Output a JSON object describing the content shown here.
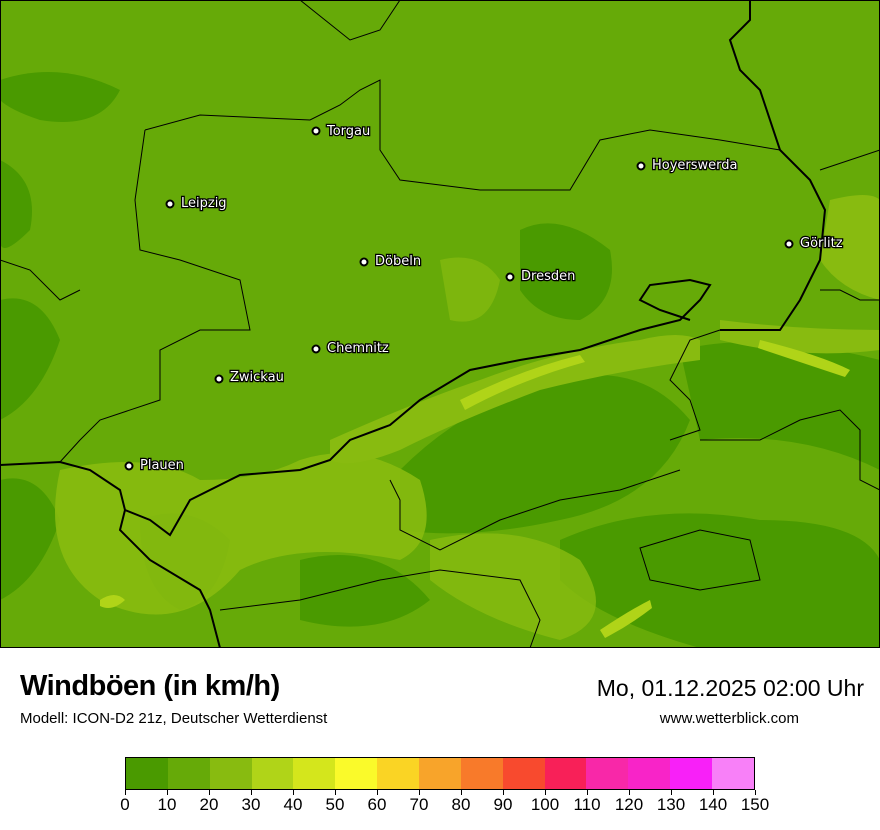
{
  "title": "Windböen (in km/h)",
  "subtitle": "Modell: ICON-D2 21z, Deutscher Wetterdienst",
  "datetime": "Mo, 01.12.2025 02:00 Uhr",
  "website": "www.wetterblick.com",
  "cities": [
    "Torgau",
    "Leipzig",
    "Hoyerswerda",
    "Döbeln",
    "Dresden",
    "Görlitz",
    "Chemnitz",
    "Zwickau",
    "Plauen"
  ],
  "legend": {
    "ticks": [
      "0",
      "10",
      "20",
      "30",
      "40",
      "50",
      "60",
      "70",
      "80",
      "90",
      "100",
      "110",
      "120",
      "130",
      "140",
      "150"
    ],
    "colors": [
      "#4a9a00",
      "#66aa08",
      "#88bb10",
      "#b0d418",
      "#d4e61c",
      "#fafa2a",
      "#fad424",
      "#f8a42a",
      "#f87a2a",
      "#f84a2e",
      "#f82058",
      "#f828a8",
      "#f824c8",
      "#f820f8",
      "#f880f8"
    ]
  }
}
